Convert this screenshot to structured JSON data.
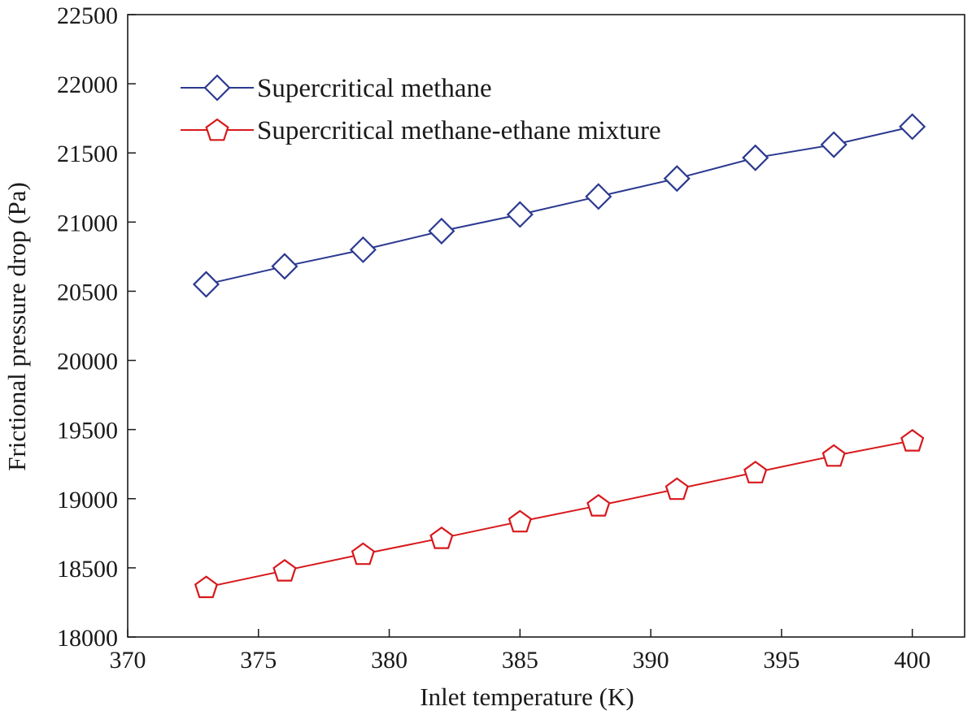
{
  "chart_data": {
    "type": "line",
    "title": "",
    "xlabel": "Inlet temperature (K)",
    "ylabel": "Frictional pressure drop (Pa)",
    "xlim": [
      370,
      402
    ],
    "ylim": [
      18000,
      22500
    ],
    "xticks": [
      370,
      375,
      380,
      385,
      390,
      395,
      400
    ],
    "yticks": [
      18000,
      18500,
      19000,
      19500,
      20000,
      20500,
      21000,
      21500,
      22000,
      22500
    ],
    "x": [
      373,
      376,
      379,
      382,
      385,
      388,
      391,
      394,
      397,
      400
    ],
    "grid": false,
    "legend_position": "top-left",
    "series": [
      {
        "name": "Supercritical methane",
        "marker": "diamond",
        "color": "#2b3990",
        "values": [
          20550,
          20680,
          20800,
          20935,
          21055,
          21185,
          21315,
          21465,
          21560,
          21690
        ]
      },
      {
        "name": "Supercritical methane-ethane mixture",
        "marker": "pentagon",
        "color": "#d7191c",
        "values": [
          18360,
          18480,
          18600,
          18715,
          18835,
          18950,
          19070,
          19190,
          19310,
          19420
        ]
      }
    ]
  }
}
